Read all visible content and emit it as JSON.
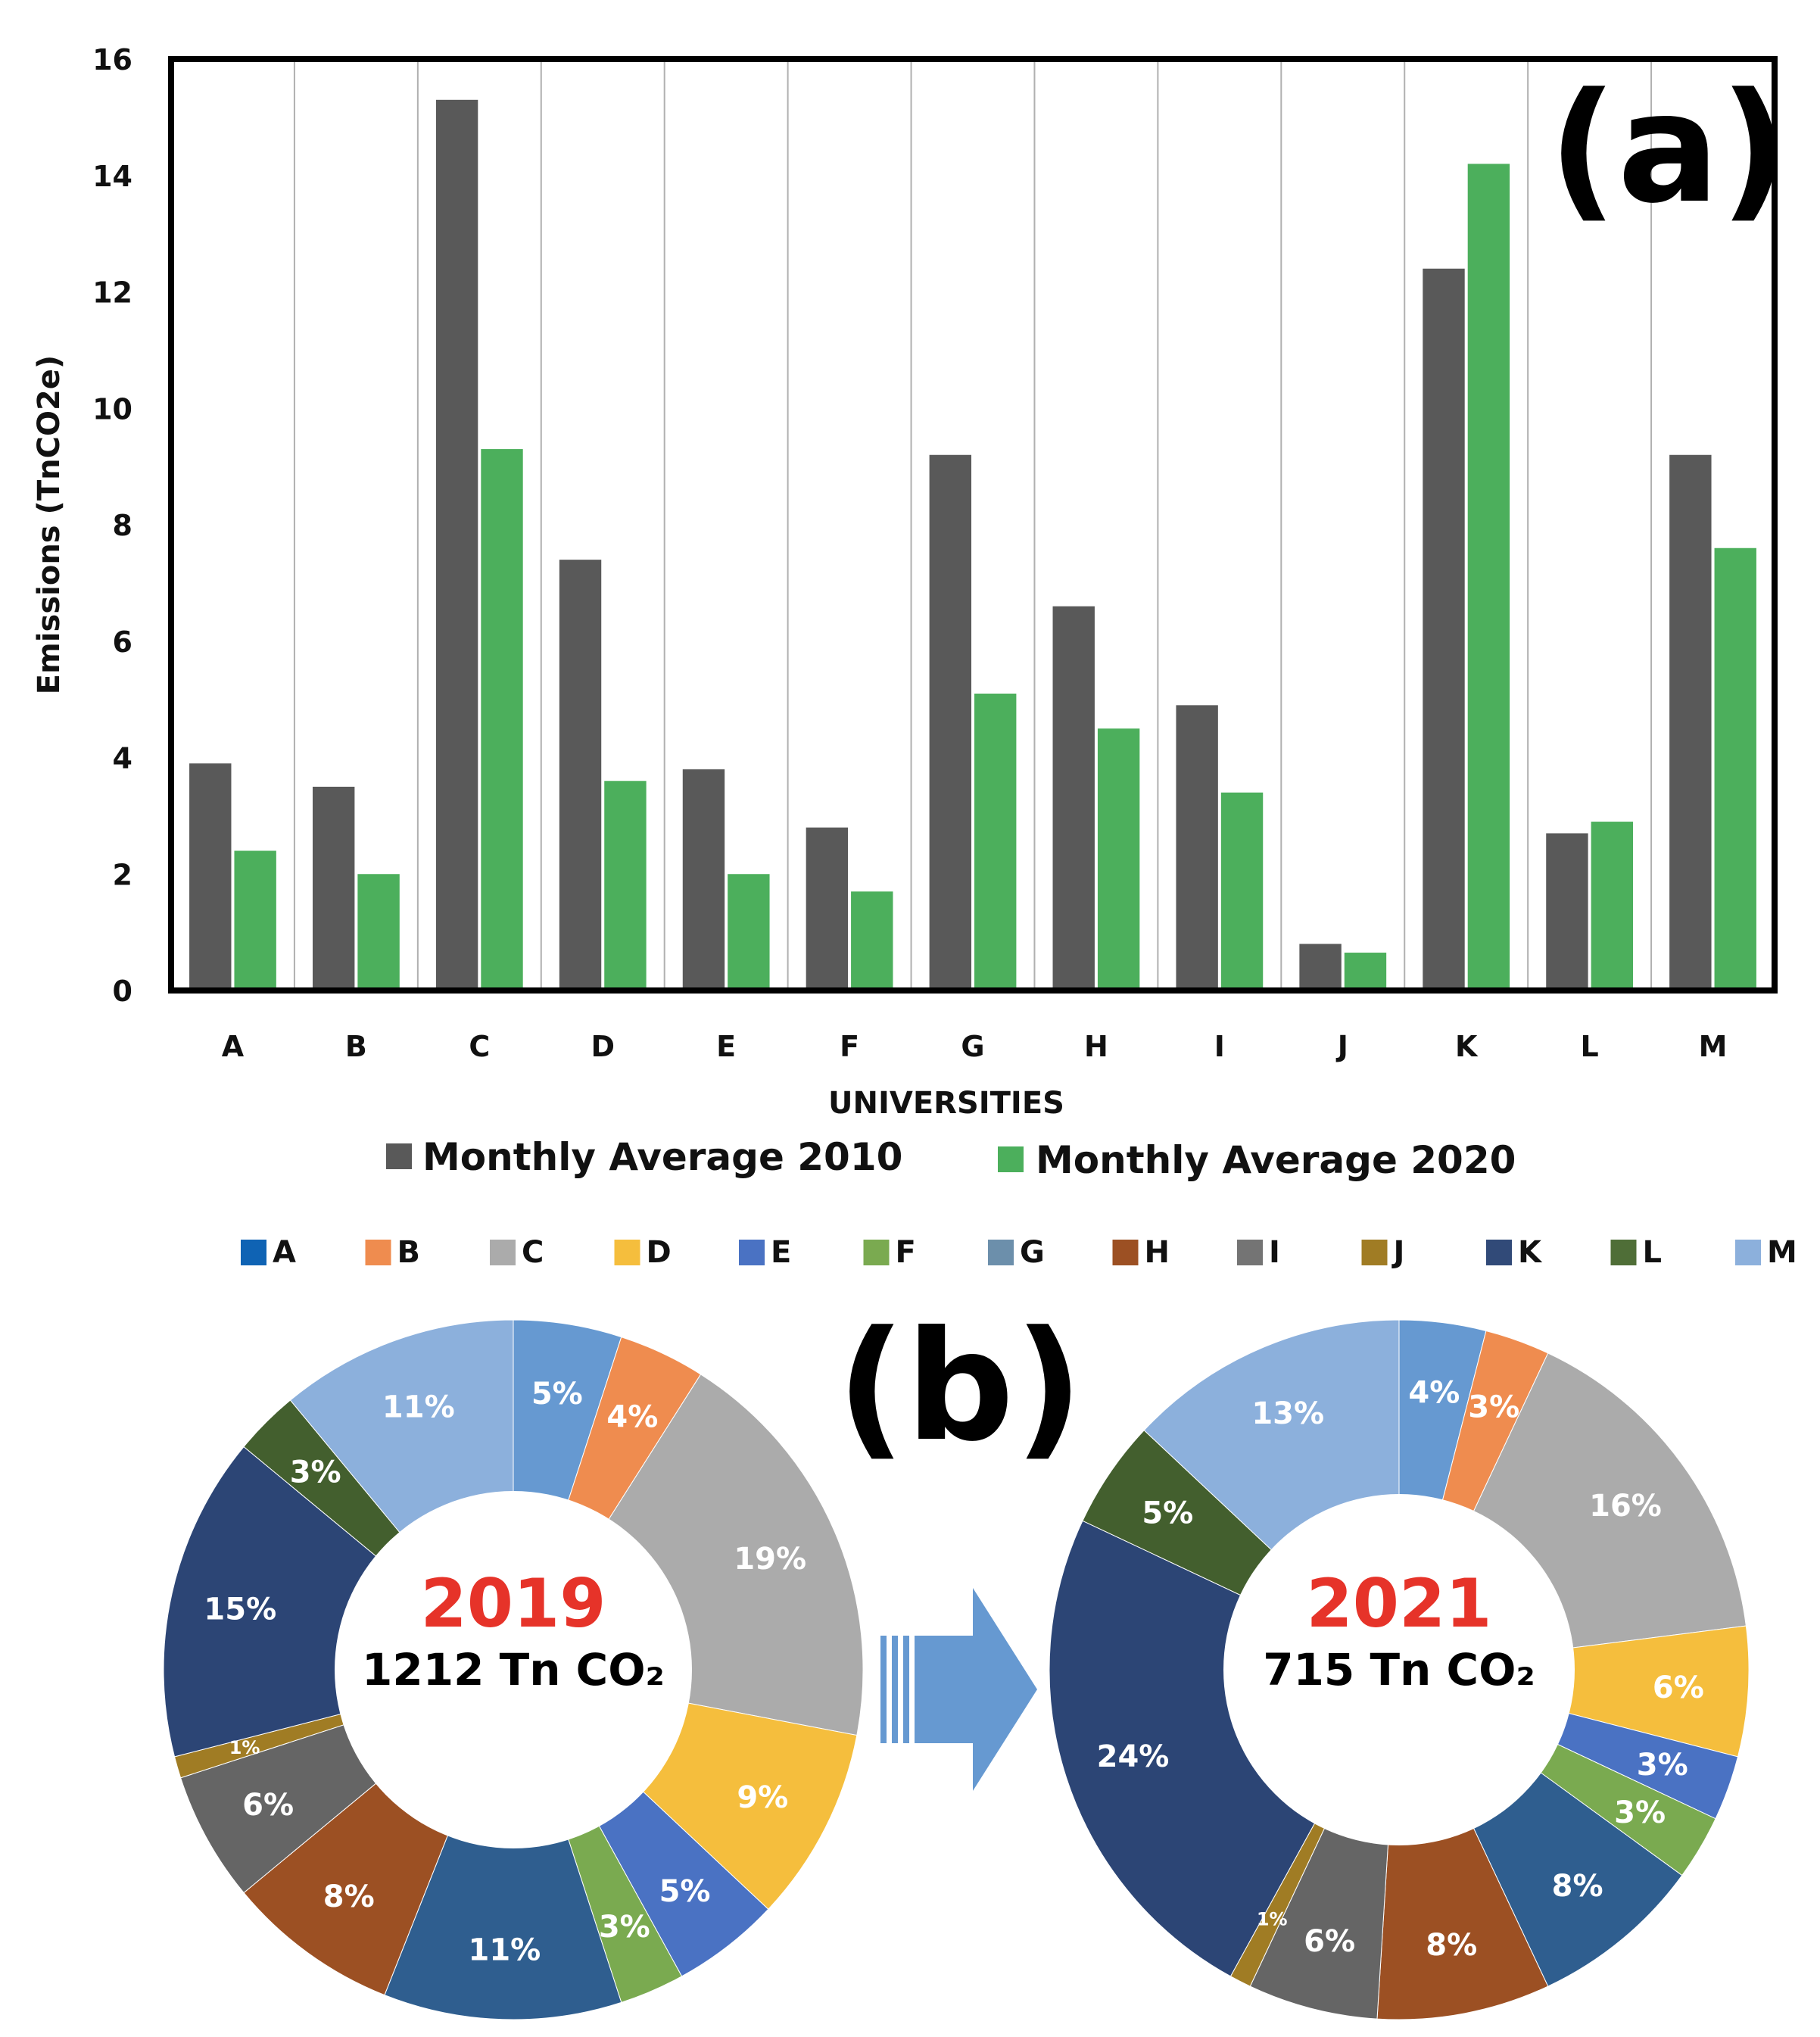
{
  "panel_a_label": "(a)",
  "panel_b_label": "(b)",
  "chart_data": [
    {
      "type": "bar",
      "title": "",
      "xlabel": "UNIVERSITIES",
      "ylabel": "Emissions (TnCO2e)",
      "ylim": [
        0,
        16
      ],
      "yticks": [
        "0",
        "2",
        "4",
        "6",
        "8",
        "10",
        "12",
        "14",
        "16"
      ],
      "categories": [
        "A",
        "B",
        "C",
        "D",
        "E",
        "F",
        "G",
        "H",
        "I",
        "J",
        "K",
        "L",
        "M"
      ],
      "series": [
        {
          "name": "Monthly Average 2010",
          "color": "#595959",
          "values": [
            3.9,
            3.5,
            15.3,
            7.4,
            3.8,
            2.8,
            9.2,
            6.6,
            4.9,
            0.8,
            12.4,
            2.7,
            9.2
          ]
        },
        {
          "name": "Monthly Average 2020",
          "color": "#4caf5c",
          "values": [
            2.4,
            2.0,
            9.3,
            3.6,
            2.0,
            1.7,
            5.1,
            4.5,
            3.4,
            0.65,
            14.2,
            2.9,
            7.6
          ]
        }
      ],
      "legend_position": "bottom",
      "grid": "vertical"
    },
    {
      "type": "pie",
      "variant": "donut",
      "center_year": "2019",
      "center_total": "1212 Tn CO₂",
      "labels": [
        "A",
        "B",
        "C",
        "D",
        "E",
        "F",
        "G",
        "H",
        "I",
        "J",
        "K",
        "L",
        "M"
      ],
      "values": [
        5,
        4,
        19,
        9,
        5,
        3,
        11,
        8,
        6,
        1,
        15,
        3,
        11
      ],
      "value_labels": [
        "5%",
        "4%",
        "19%",
        "9%",
        "5%",
        "3%",
        "11%",
        "8%",
        "6%",
        "1%",
        "15%",
        "3%",
        "11%"
      ]
    },
    {
      "type": "pie",
      "variant": "donut",
      "center_year": "2021",
      "center_total": "715 Tn CO₂",
      "labels": [
        "A",
        "B",
        "C",
        "D",
        "E",
        "F",
        "G",
        "H",
        "I",
        "J",
        "K",
        "L",
        "M"
      ],
      "values": [
        4,
        3,
        16,
        6,
        3,
        3,
        8,
        8,
        6,
        1,
        24,
        5,
        13
      ],
      "value_labels": [
        "4%",
        "3%",
        "16%",
        "6%",
        "3%",
        "3%",
        "8%",
        "8%",
        "6%",
        "1%",
        "24%",
        "5%",
        "13%"
      ]
    }
  ],
  "pie_legend": {
    "items": [
      {
        "label": "A",
        "color": "#0f63b4"
      },
      {
        "label": "B",
        "color": "#ef8c4f"
      },
      {
        "label": "C",
        "color": "#ababab"
      },
      {
        "label": "D",
        "color": "#f5be3d"
      },
      {
        "label": "E",
        "color": "#4a72c3"
      },
      {
        "label": "F",
        "color": "#7aaa50"
      },
      {
        "label": "G",
        "color": "#6c8fab"
      },
      {
        "label": "H",
        "color": "#9c5023"
      },
      {
        "label": "I",
        "color": "#747474"
      },
      {
        "label": "J",
        "color": "#a07c24"
      },
      {
        "label": "K",
        "color": "#314a78"
      },
      {
        "label": "L",
        "color": "#4f6e37"
      },
      {
        "label": "M",
        "color": "#8cb0dc"
      }
    ],
    "slice_colors": [
      "#6699d1",
      "#ef8c4f",
      "#ababab",
      "#f5be3d",
      "#4a72c3",
      "#7aaa50",
      "#2f5e8f",
      "#9c5023",
      "#656565",
      "#a07c24",
      "#2c4575",
      "#435f2e",
      "#8cb0dc"
    ]
  },
  "arrow_color": "#6699d1"
}
